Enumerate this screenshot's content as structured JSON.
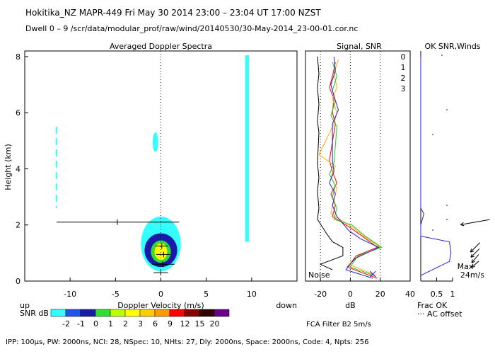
{
  "header": {
    "title": "Hokitika_NZ   MAPR-449   Fri May 30 2014 23:00 – 23:04 UT 17:00 NZST",
    "dwell": "Dwell  0 – 9   /scr/data/modular_prof/raw/wind/20140530/30-May-2014_23-00-01.cor.nc"
  },
  "footer": {
    "params": "IPP: 100µs,  PW: 2000ns,  NCI: 28,  NSpec: 10, NHts: 27,  Dly: 2000ns,  Space: 2000ns,  Code: 4,  Npts: 256",
    "fca": "FCA Filter B2   5m/s"
  },
  "colors": {
    "cyan": "#33ffff",
    "blue1": "#2255ee",
    "blue2": "#1a1aaa",
    "green": "#33dd33",
    "yellow": "#ffff00",
    "orange": "#ff9900",
    "red": "#ff0000",
    "darkred": "#880000",
    "black": "#000000",
    "purple": "#660088"
  },
  "chart_data": [
    {
      "type": "heatmap",
      "title": "Averaged Doppler Spectra",
      "xlabel": "Doppler Velocity (m/s)",
      "ylabel": "Height (km)",
      "xlim": [
        -15,
        15
      ],
      "ylim": [
        0,
        8.2
      ],
      "x_ticks": [
        -10,
        -5,
        0,
        5,
        10
      ],
      "y_ticks": [
        0,
        2,
        4,
        6,
        8
      ],
      "x_left_label": "up",
      "x_right_label": "down",
      "regions": [
        {
          "name": "ground-clutter-outer",
          "snr_db": -2,
          "color": "#33ffff",
          "v": [
            -2.2,
            2.2
          ],
          "h": [
            0.35,
            2.3
          ]
        },
        {
          "name": "ground-clutter-mid",
          "snr_db": 0,
          "color": "#1a1aaa",
          "v": [
            -1.8,
            1.8
          ],
          "h": [
            0.5,
            1.7
          ]
        },
        {
          "name": "ground-clutter-green",
          "snr_db": 1,
          "color": "#33dd33",
          "v": [
            -1.1,
            1.1
          ],
          "h": [
            0.65,
            1.45
          ]
        },
        {
          "name": "ground-clutter-core",
          "snr_db": 3,
          "color": "#ffff00",
          "v": [
            -0.7,
            0.7
          ],
          "h": [
            0.75,
            1.35
          ]
        },
        {
          "name": "cyan-streak-9.5",
          "snr_db": -2,
          "color": "#33ffff",
          "v": [
            9.3,
            9.7
          ],
          "h": [
            1.4,
            8.05
          ]
        },
        {
          "name": "cyan-blob-5km",
          "snr_db": -2,
          "color": "#33ffff",
          "v": [
            -0.9,
            -0.3
          ],
          "h": [
            4.6,
            5.3
          ]
        }
      ],
      "consensus_points": [
        {
          "velocity": -4.8,
          "height": 2.1,
          "left": -11.5,
          "right": 2.0
        },
        {
          "velocity": 0.1,
          "height": 1.25,
          "left": -0.6,
          "right": 0.8
        },
        {
          "velocity": 0.3,
          "height": 0.95,
          "left": -0.5,
          "right": 1.0
        },
        {
          "velocity": 0.2,
          "height": 0.6,
          "left": -1.0,
          "right": 1.5
        },
        {
          "velocity": 0.0,
          "height": 0.3,
          "left": -0.8,
          "right": 0.8
        }
      ]
    },
    {
      "type": "line",
      "title": "Signal, SNR",
      "xlabel": "dB",
      "xlim": [
        -30,
        40
      ],
      "ylim": [
        0,
        8.2
      ],
      "x_ticks": [
        -20,
        0,
        20,
        40
      ],
      "annotation": "Noise",
      "legend": [
        {
          "label": "0",
          "color": "#ff0000"
        },
        {
          "label": "1",
          "color": "#ffaa00"
        },
        {
          "label": "2",
          "color": "#22cc22"
        },
        {
          "label": "3",
          "color": "#2222cc"
        }
      ],
      "series": [
        {
          "name": "noise",
          "color": "#000000",
          "points": [
            [
              -22,
              8.0
            ],
            [
              -21,
              7.4
            ],
            [
              -22,
              6.9
            ],
            [
              -21,
              6.3
            ],
            [
              -22,
              5.7
            ],
            [
              -21,
              5.3
            ],
            [
              -22,
              4.2
            ],
            [
              -21,
              3.7
            ],
            [
              -22,
              3.2
            ],
            [
              -21,
              2.6
            ],
            [
              -22,
              2.2
            ],
            [
              -16,
              1.7
            ],
            [
              -12,
              1.4
            ],
            [
              -5,
              1.2
            ],
            [
              -5,
              0.9
            ],
            [
              -20,
              0.6
            ],
            [
              -12,
              0.4
            ]
          ]
        },
        {
          "name": "0",
          "color": "#ff0000",
          "points": [
            [
              -10,
              7.8
            ],
            [
              -12,
              7.3
            ],
            [
              -14,
              6.9
            ],
            [
              -11,
              6.5
            ],
            [
              -12,
              6.0
            ],
            [
              -10,
              5.6
            ],
            [
              -14,
              4.3
            ],
            [
              -12,
              3.9
            ],
            [
              -9,
              3.5
            ],
            [
              -13,
              3.1
            ],
            [
              -10,
              2.7
            ],
            [
              -12,
              2.3
            ],
            [
              0,
              1.9
            ],
            [
              8,
              1.6
            ],
            [
              18,
              1.2
            ],
            [
              4,
              0.9
            ],
            [
              -2,
              0.5
            ],
            [
              18,
              0.1
            ]
          ]
        },
        {
          "name": "1",
          "color": "#ffaa00",
          "points": [
            [
              -8,
              7.9
            ],
            [
              -11,
              7.4
            ],
            [
              -9,
              6.9
            ],
            [
              -12,
              6.5
            ],
            [
              -9,
              6.0
            ],
            [
              -11,
              5.6
            ],
            [
              -21,
              4.5
            ],
            [
              -10,
              4.1
            ],
            [
              -13,
              3.7
            ],
            [
              -9,
              3.3
            ],
            [
              -11,
              2.9
            ],
            [
              -13,
              2.4
            ],
            [
              2,
              1.9
            ],
            [
              9,
              1.6
            ],
            [
              20,
              1.2
            ],
            [
              6,
              0.9
            ],
            [
              -1,
              0.6
            ],
            [
              17,
              0.2
            ]
          ]
        },
        {
          "name": "2",
          "color": "#22cc22",
          "points": [
            [
              -12,
              7.8
            ],
            [
              -9,
              7.3
            ],
            [
              -12,
              6.8
            ],
            [
              -10,
              6.4
            ],
            [
              -13,
              5.9
            ],
            [
              -9,
              5.5
            ],
            [
              -11,
              4.2
            ],
            [
              -14,
              3.8
            ],
            [
              -10,
              3.4
            ],
            [
              -12,
              3.0
            ],
            [
              -9,
              2.6
            ],
            [
              -11,
              2.2
            ],
            [
              1,
              2.0
            ],
            [
              10,
              1.6
            ],
            [
              21,
              1.2
            ],
            [
              5,
              0.9
            ],
            [
              0,
              0.5
            ],
            [
              16,
              0.2
            ]
          ]
        },
        {
          "name": "3",
          "color": "#2222cc",
          "points": [
            [
              -11,
              8.0
            ],
            [
              -10,
              7.5
            ],
            [
              -13,
              7.0
            ],
            [
              -11,
              6.6
            ],
            [
              -8,
              6.1
            ],
            [
              -12,
              5.6
            ],
            [
              -12,
              4.3
            ],
            [
              -11,
              3.9
            ],
            [
              -14,
              3.5
            ],
            [
              -10,
              3.1
            ],
            [
              -12,
              2.7
            ],
            [
              -9,
              2.3
            ],
            [
              -1,
              1.8
            ],
            [
              7,
              1.5
            ],
            [
              19,
              1.2
            ],
            [
              3,
              0.8
            ],
            [
              -3,
              0.4
            ],
            [
              15,
              0.1
            ]
          ]
        }
      ]
    },
    {
      "type": "scatter",
      "title": "OK SNR,Winds",
      "xlabel": "Frac OK",
      "x_ticks": [
        0.5,
        1
      ],
      "legend_note": "··· AC offset",
      "max_label": "Max\n24m/s",
      "frac_ok": [
        [
          0.0,
          8.0
        ],
        [
          0.0,
          6.5
        ],
        [
          0.0,
          5.0
        ],
        [
          0.0,
          3.5
        ],
        [
          0.0,
          2.6
        ],
        [
          0.1,
          2.4
        ],
        [
          0.0,
          2.0
        ],
        [
          0.0,
          1.6
        ],
        [
          0.9,
          1.4
        ],
        [
          0.95,
          1.0
        ],
        [
          0.9,
          0.7
        ],
        [
          0.0,
          0.2
        ]
      ],
      "wind_barbs": [
        {
          "height": 2.1,
          "speed": 22,
          "dir_deg": 260
        },
        {
          "height": 1.2,
          "speed": 10,
          "dir_deg": 225
        },
        {
          "height": 1.0,
          "speed": 9,
          "dir_deg": 225
        },
        {
          "height": 0.8,
          "speed": 8,
          "dir_deg": 220
        },
        {
          "height": 0.6,
          "speed": 7,
          "dir_deg": 230
        }
      ]
    }
  ],
  "colorbar": {
    "label_left": "SNR dB",
    "labels": [
      "-2",
      "-1",
      "0",
      "1",
      "2",
      "3",
      "6",
      "9",
      "12",
      "15",
      "20"
    ],
    "colors": [
      "#33ffff",
      "#2255ee",
      "#1a1aaa",
      "#33dd33",
      "#bbff00",
      "#ffff00",
      "#ffcc00",
      "#ff9900",
      "#ff0000",
      "#880000",
      "#330000",
      "#660088"
    ]
  }
}
